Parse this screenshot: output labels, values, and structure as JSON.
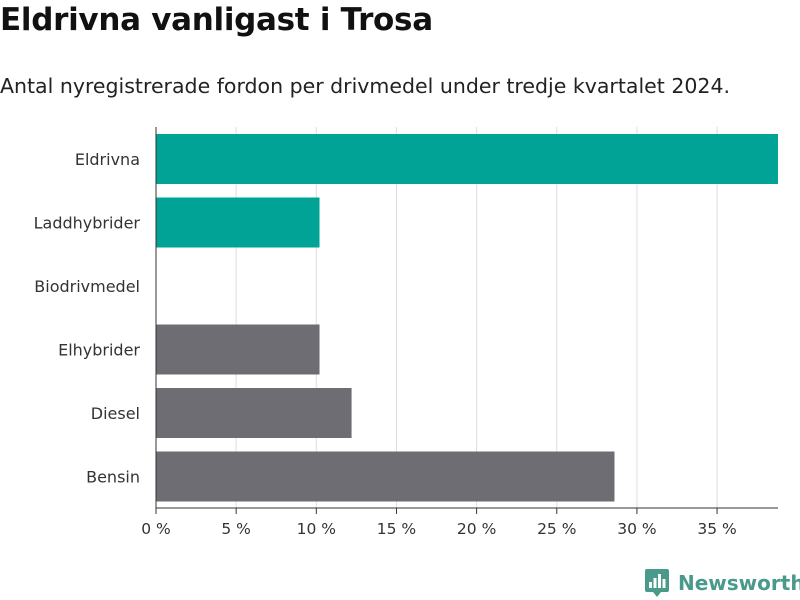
{
  "title": "Eldrivna vanligast i Trosa",
  "subtitle": "Antal nyregistrerade fordon per drivmedel under tredje kvartalet 2024.",
  "brand": {
    "name": "Newsworthy",
    "icon": "newsworthy-logo-icon",
    "color": "#4a9a8c"
  },
  "colors": {
    "highlight": "#00a396",
    "default": "#6e6d73",
    "grid": "#dddddd",
    "axis": "#333333"
  },
  "chart_data": {
    "type": "bar",
    "orientation": "horizontal",
    "categories": [
      "Eldrivna",
      "Laddhybrider",
      "Biodrivmedel",
      "Elhybrider",
      "Diesel",
      "Bensin"
    ],
    "values": [
      38.8,
      10.2,
      0,
      10.2,
      12.2,
      28.6
    ],
    "bar_colors": [
      "#00a396",
      "#00a396",
      "#00a396",
      "#6e6d73",
      "#6e6d73",
      "#6e6d73"
    ],
    "xlim": [
      0,
      38.8
    ],
    "xticks": [
      0,
      5,
      10,
      15,
      20,
      25,
      30,
      35
    ],
    "xtick_labels": [
      "0 %",
      "5 %",
      "10 %",
      "15 %",
      "20 %",
      "25 %",
      "30 %",
      "35 %"
    ],
    "grid": true,
    "xlabel": "",
    "ylabel": ""
  }
}
